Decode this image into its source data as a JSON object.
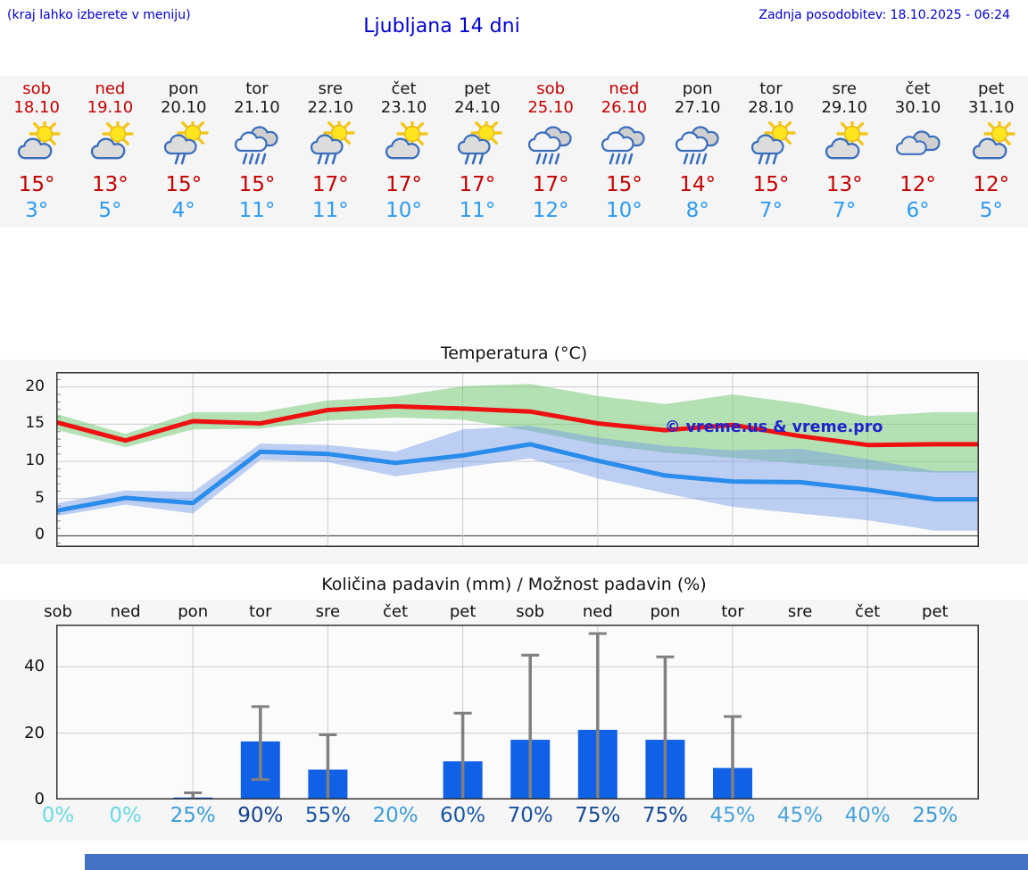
{
  "header": {
    "hint": "(kraj lahko izberete v meniju)",
    "title": "Ljubljana 14 dni",
    "last_update": "Zadnja posodobitev: 18.10.2025 - 06:24",
    "text_color": "#0000cc"
  },
  "forecast": {
    "weekend_color": "#c40000",
    "weekday_color": "#1a1a1a",
    "high_color": "#c40000",
    "low_color": "#2d9bf0",
    "days": [
      {
        "name": "sob",
        "date": "18.10",
        "weekend": true,
        "icon": "sun-cloud",
        "high": "15°",
        "low": "3°"
      },
      {
        "name": "ned",
        "date": "19.10",
        "weekend": true,
        "icon": "sun-cloud",
        "high": "13°",
        "low": "5°"
      },
      {
        "name": "pon",
        "date": "20.10",
        "weekend": false,
        "icon": "sun-cloud-light-rain",
        "high": "15°",
        "low": "4°"
      },
      {
        "name": "tor",
        "date": "21.10",
        "weekend": false,
        "icon": "cloud-rain",
        "high": "15°",
        "low": "11°"
      },
      {
        "name": "sre",
        "date": "22.10",
        "weekend": false,
        "icon": "sun-cloud-rain",
        "high": "17°",
        "low": "11°"
      },
      {
        "name": "čet",
        "date": "23.10",
        "weekend": false,
        "icon": "sun-cloud",
        "high": "17°",
        "low": "10°"
      },
      {
        "name": "pet",
        "date": "24.10",
        "weekend": false,
        "icon": "sun-cloud-rain",
        "high": "17°",
        "low": "11°"
      },
      {
        "name": "sob",
        "date": "25.10",
        "weekend": true,
        "icon": "cloud-rain",
        "high": "17°",
        "low": "12°"
      },
      {
        "name": "ned",
        "date": "26.10",
        "weekend": true,
        "icon": "cloud-rain",
        "high": "15°",
        "low": "10°"
      },
      {
        "name": "pon",
        "date": "27.10",
        "weekend": false,
        "icon": "cloud-rain",
        "high": "14°",
        "low": "8°"
      },
      {
        "name": "tor",
        "date": "28.10",
        "weekend": false,
        "icon": "sun-cloud-rain",
        "high": "15°",
        "low": "7°"
      },
      {
        "name": "sre",
        "date": "29.10",
        "weekend": false,
        "icon": "sun-cloud",
        "high": "13°",
        "low": "7°"
      },
      {
        "name": "čet",
        "date": "30.10",
        "weekend": false,
        "icon": "cloudy",
        "high": "12°",
        "low": "6°"
      },
      {
        "name": "pet",
        "date": "31.10",
        "weekend": false,
        "icon": "sun-cloud",
        "high": "12°",
        "low": "5°"
      }
    ]
  },
  "chart_data": [
    {
      "type": "line",
      "title": "Temperatura (°C)",
      "categories": [
        "sob 18.10",
        "ned 19.10",
        "pon 20.10",
        "tor 21.10",
        "sre 22.10",
        "čet 23.10",
        "pet 24.10",
        "sob 25.10",
        "ned 26.10",
        "pon 27.10",
        "tor 28.10",
        "sre 29.10",
        "čet 30.10",
        "pet 31.10"
      ],
      "ylim": [
        -1.5,
        22
      ],
      "yticks": [
        0,
        5,
        10,
        15,
        20
      ],
      "grid": true,
      "legend": "none",
      "watermark": "© vreme.us & vreme.pro",
      "watermark_color": "#2222cc",
      "series": [
        {
          "name": "max temperature",
          "color": "#ee1111",
          "values": [
            15.2,
            12.8,
            15.4,
            15.1,
            16.9,
            17.4,
            17.1,
            16.7,
            15.1,
            14.2,
            14.9,
            13.4,
            12.2,
            12.3
          ]
        },
        {
          "name": "min temperature",
          "color": "#2a8ceb",
          "values": [
            3.4,
            5.1,
            4.4,
            11.3,
            11.0,
            9.8,
            10.8,
            12.3,
            10.1,
            8.1,
            7.3,
            7.2,
            6.2,
            4.9
          ]
        }
      ],
      "bands": [
        {
          "name": "max temperature range",
          "color": "rgba(110,200,110,0.5)",
          "upper": [
            16.3,
            13.7,
            16.6,
            16.6,
            18.2,
            18.7,
            20.1,
            20.4,
            18.8,
            17.7,
            19.0,
            17.8,
            16.1,
            16.6
          ],
          "lower": [
            14.2,
            11.9,
            14.3,
            14.4,
            15.5,
            15.9,
            15.6,
            14.1,
            12.3,
            11.2,
            10.5,
            9.7,
            8.9,
            8.5
          ]
        },
        {
          "name": "min temperature range",
          "color": "rgba(110,150,230,0.45)",
          "upper": [
            4.4,
            6.1,
            5.9,
            12.4,
            12.2,
            11.3,
            14.3,
            14.8,
            13.2,
            12.1,
            11.5,
            11.7,
            10.3,
            8.7
          ],
          "lower": [
            2.7,
            4.2,
            3.0,
            10.2,
            9.9,
            8.0,
            9.2,
            10.4,
            7.7,
            5.7,
            3.9,
            3.0,
            2.1,
            0.7
          ]
        }
      ]
    },
    {
      "type": "bar",
      "title": "Količina padavin (mm) / Možnost padavin (%)",
      "categories": [
        "sob",
        "ned",
        "pon",
        "tor",
        "sre",
        "čet",
        "pet",
        "sob",
        "ned",
        "pon",
        "tor",
        "sre",
        "čet",
        "pet"
      ],
      "ylim": [
        0,
        52.7
      ],
      "yticks": [
        0,
        20,
        40
      ],
      "grid": true,
      "bar_color": "#1161e6",
      "error_color": "#808080",
      "values": [
        0,
        0.3,
        0.6,
        17.5,
        9,
        0.3,
        11.5,
        18,
        21,
        18,
        9.5,
        0.3,
        0.3,
        0.3
      ],
      "error_bars": [
        null,
        null,
        {
          "lo": 0,
          "hi": 2
        },
        {
          "lo": 6,
          "hi": 28
        },
        {
          "lo": 0,
          "hi": 19.5
        },
        null,
        {
          "lo": 0,
          "hi": 26
        },
        {
          "lo": 0,
          "hi": 43.5
        },
        {
          "lo": 0,
          "hi": 50
        },
        {
          "lo": 0,
          "hi": 43
        },
        {
          "lo": 0,
          "hi": 25
        },
        null,
        null,
        null
      ],
      "probabilities": [
        {
          "label": "0%",
          "color": "#68dae3"
        },
        {
          "label": "0%",
          "color": "#68dae3"
        },
        {
          "label": "25%",
          "color": "#3d9cd6"
        },
        {
          "label": "90%",
          "color": "#15418f"
        },
        {
          "label": "55%",
          "color": "#1b58a5"
        },
        {
          "label": "20%",
          "color": "#3d9cd6"
        },
        {
          "label": "60%",
          "color": "#1b58a5"
        },
        {
          "label": "70%",
          "color": "#1a529e"
        },
        {
          "label": "75%",
          "color": "#174b96"
        },
        {
          "label": "75%",
          "color": "#174b96"
        },
        {
          "label": "45%",
          "color": "#4ba4da"
        },
        {
          "label": "45%",
          "color": "#4ba4da"
        },
        {
          "label": "40%",
          "color": "#4ba4da"
        },
        {
          "label": "25%",
          "color": "#3d9cd6"
        }
      ]
    }
  ]
}
